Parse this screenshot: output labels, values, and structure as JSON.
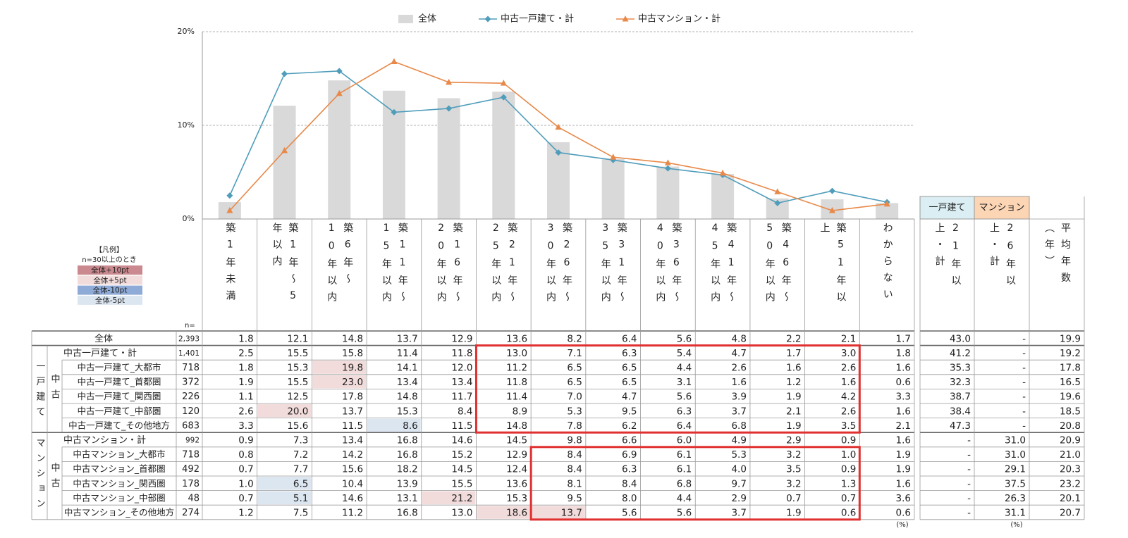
{
  "chart_data": {
    "type": "combo",
    "grid": true,
    "legend_position": "top",
    "categories": [
      "築1年未満",
      "築1年～5年以内",
      "築6年～10年以内",
      "築11年～15年以内",
      "築16年～20年以内",
      "築21年～25年以内",
      "築26年～30年以内",
      "築31年～35年以内",
      "築36年～40年以内",
      "築41年～45年以内",
      "築46年～50年以内",
      "築51年以上",
      "わからない"
    ],
    "ylim": [
      0,
      20
    ],
    "yticks": [
      {
        "value": 0,
        "label": "0%"
      },
      {
        "value": 10,
        "label": "10%"
      },
      {
        "value": 20,
        "label": "20%"
      }
    ],
    "series": [
      {
        "name": "全体",
        "mark": "bar",
        "color": "#d9d9d9",
        "values": [
          1.8,
          12.1,
          14.8,
          13.7,
          12.9,
          13.6,
          8.2,
          6.4,
          5.6,
          4.8,
          2.2,
          2.1,
          1.7
        ],
        "value_labels": [
          "1.8",
          "12.1",
          "14.8",
          "13.7",
          "12.9",
          "13.6",
          "8.2",
          "6.4",
          "5.6",
          "4.8",
          "2.2",
          "2.1",
          "1.7"
        ]
      },
      {
        "name": "中古一戸建て・計",
        "mark": "line",
        "marker": "diamond",
        "color": "#4f9dbb",
        "values": [
          2.5,
          15.5,
          15.8,
          11.4,
          11.8,
          13.0,
          7.1,
          6.3,
          5.4,
          4.7,
          1.7,
          3.0,
          1.8
        ],
        "value_labels": [
          "2.5",
          "15.5",
          "15.8",
          "11.4",
          "11.8",
          "13.0",
          "7.1",
          "6.3",
          "5.4",
          "4.7",
          "1.7",
          "3.0",
          "1.8"
        ]
      },
      {
        "name": "中古マンション・計",
        "mark": "line",
        "marker": "triangle",
        "color": "#e8894a",
        "values": [
          0.9,
          7.3,
          13.4,
          16.8,
          14.6,
          14.5,
          9.8,
          6.6,
          6.0,
          4.9,
          2.9,
          0.9,
          1.6
        ],
        "value_labels": [
          "0.9",
          "7.3",
          "13.4",
          "16.8",
          "14.6",
          "14.5",
          "9.8",
          "6.6",
          "6.0",
          "4.9",
          "2.9",
          "0.9",
          "1.6"
        ]
      }
    ]
  },
  "table": {
    "n_label": "n=",
    "unit": "(%)",
    "extra_groups": [
      "一戸建て",
      "マンション"
    ],
    "extra_columns": [
      "21年以上・計",
      "26年以上・計",
      "平均年数（年）"
    ],
    "summary": [
      {
        "n": "2,393",
        "extra": [
          "43.0",
          "-",
          "19.9"
        ]
      },
      {
        "n": "1,401",
        "extra": [
          "41.2",
          "-",
          "19.2"
        ]
      },
      {
        "n": "992",
        "extra": [
          "-",
          "31.0",
          "20.9"
        ]
      }
    ],
    "groups": [
      {
        "type_label": "一戸建て",
        "sub_label": "中古",
        "rows": [
          {
            "label": "中古一戸建て_大都市",
            "n": "718",
            "values": [
              "1.8",
              "15.3",
              "19.8",
              "14.1",
              "12.0",
              "11.2",
              "6.5",
              "6.5",
              "4.4",
              "2.6",
              "1.6",
              "2.6",
              "1.6"
            ],
            "extra": [
              "35.3",
              "-",
              "17.8"
            ],
            "cell_colors": [
              null,
              null,
              "#f2dcdb",
              null,
              null,
              null,
              null,
              null,
              null,
              null,
              null,
              null,
              null
            ]
          },
          {
            "label": "中古一戸建て_首都圏",
            "n": "372",
            "values": [
              "1.9",
              "15.5",
              "23.0",
              "13.4",
              "13.4",
              "11.8",
              "6.5",
              "6.5",
              "3.1",
              "1.6",
              "1.2",
              "1.6",
              "0.6"
            ],
            "extra": [
              "32.3",
              "-",
              "16.5"
            ],
            "cell_colors": [
              null,
              null,
              "#f2dcdb",
              null,
              null,
              null,
              null,
              null,
              null,
              null,
              null,
              null,
              null
            ]
          },
          {
            "label": "中古一戸建て_関西圏",
            "n": "226",
            "values": [
              "1.1",
              "12.5",
              "17.8",
              "14.8",
              "11.7",
              "11.4",
              "7.0",
              "4.7",
              "5.6",
              "3.9",
              "1.9",
              "4.2",
              "3.3"
            ],
            "extra": [
              "38.7",
              "-",
              "19.6"
            ]
          },
          {
            "label": "中古一戸建て_中部圏",
            "n": "120",
            "values": [
              "2.6",
              "20.0",
              "13.7",
              "15.3",
              "8.4",
              "8.9",
              "5.3",
              "9.5",
              "6.3",
              "3.7",
              "2.1",
              "2.6",
              "1.6"
            ],
            "extra": [
              "38.4",
              "-",
              "18.5"
            ],
            "cell_colors": [
              null,
              "#f2dcdb",
              null,
              null,
              null,
              null,
              null,
              null,
              null,
              null,
              null,
              null,
              null
            ]
          },
          {
            "label": "中古一戸建て_その他地方",
            "n": "683",
            "values": [
              "3.3",
              "15.6",
              "11.5",
              "8.6",
              "11.5",
              "14.8",
              "7.8",
              "6.2",
              "6.4",
              "6.8",
              "1.9",
              "3.5",
              "2.1"
            ],
            "extra": [
              "47.3",
              "-",
              "20.8"
            ],
            "cell_colors": [
              null,
              null,
              null,
              "#dce6f1",
              null,
              null,
              null,
              null,
              null,
              null,
              null,
              null,
              null
            ]
          }
        ]
      },
      {
        "type_label": "マンション",
        "sub_label": "中古",
        "rows": [
          {
            "label": "中古マンション_大都市",
            "n": "718",
            "values": [
              "0.8",
              "7.2",
              "14.2",
              "16.8",
              "15.2",
              "12.9",
              "8.4",
              "6.9",
              "6.1",
              "5.3",
              "3.2",
              "1.0",
              "1.9"
            ],
            "extra": [
              "-",
              "31.0",
              "21.0"
            ]
          },
          {
            "label": "中古マンション_首都圏",
            "n": "492",
            "values": [
              "0.7",
              "7.7",
              "15.6",
              "18.2",
              "14.5",
              "12.4",
              "8.4",
              "6.3",
              "6.1",
              "4.0",
              "3.5",
              "0.9",
              "1.9"
            ],
            "extra": [
              "-",
              "29.1",
              "20.3"
            ]
          },
          {
            "label": "中古マンション_関西圏",
            "n": "178",
            "values": [
              "1.0",
              "6.5",
              "10.4",
              "13.9",
              "15.5",
              "13.6",
              "8.1",
              "8.4",
              "6.8",
              "9.7",
              "3.2",
              "1.3",
              "1.6"
            ],
            "extra": [
              "-",
              "37.5",
              "23.2"
            ],
            "cell_colors": [
              null,
              "#dce6f1",
              null,
              null,
              null,
              null,
              null,
              null,
              null,
              null,
              null,
              null,
              null
            ]
          },
          {
            "label": "中古マンション_中部圏",
            "n": "48",
            "values": [
              "0.7",
              "5.1",
              "14.6",
              "13.1",
              "21.2",
              "15.3",
              "9.5",
              "8.0",
              "4.4",
              "2.9",
              "0.7",
              "0.7",
              "3.6"
            ],
            "extra": [
              "-",
              "26.3",
              "20.1"
            ],
            "cell_colors": [
              null,
              "#dce6f1",
              null,
              null,
              "#f2dcdb",
              null,
              null,
              null,
              null,
              null,
              null,
              null,
              null
            ]
          },
          {
            "label": "中古マンション_その他地方",
            "n": "274",
            "values": [
              "1.2",
              "7.5",
              "11.2",
              "16.8",
              "13.0",
              "18.6",
              "13.7",
              "5.6",
              "5.6",
              "3.7",
              "1.9",
              "0.6",
              "0.6"
            ],
            "extra": [
              "-",
              "31.1",
              "20.7"
            ],
            "cell_colors": [
              null,
              null,
              null,
              null,
              null,
              "#f2dcdb",
              "#f2dcdb",
              null,
              null,
              null,
              null,
              null,
              null
            ]
          }
        ]
      }
    ],
    "legend": {
      "title": "【凡例】",
      "note": "n=30以上のとき",
      "items": [
        {
          "label": "全体+10pt",
          "color": "#c9898e"
        },
        {
          "label": "全体+5pt",
          "color": "#f2dcdb"
        },
        {
          "label": "全体-10pt",
          "color": "#8eaad6"
        },
        {
          "label": "全体-5pt",
          "color": "#dce6f1"
        }
      ]
    }
  }
}
